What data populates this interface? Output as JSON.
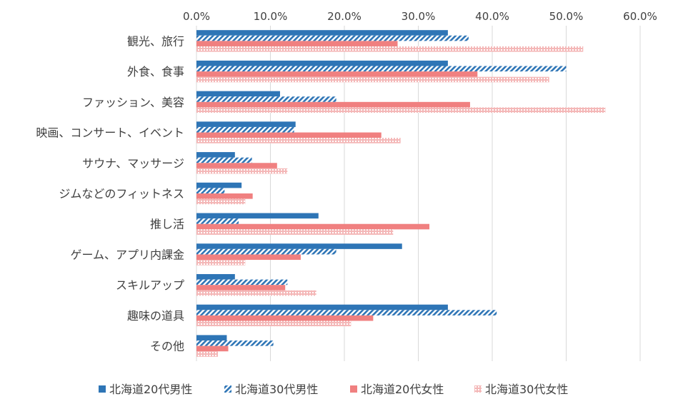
{
  "chart_data": {
    "type": "bar",
    "orientation": "horizontal",
    "categories": [
      "観光、旅行",
      "外食、食事",
      "ファッション、美容",
      "映画、コンサート、イベント",
      "サウナ、マッサージ",
      "ジムなどのフィットネス",
      "推し活",
      "ゲーム、アプリ内課金",
      "スキルアップ",
      "趣味の道具",
      "その他"
    ],
    "series": [
      {
        "name": "北海道20代男性",
        "color": "#2E75B6",
        "pattern": "solid",
        "values": [
          34.0,
          34.0,
          11.3,
          13.4,
          5.2,
          6.1,
          16.5,
          27.8,
          5.2,
          34.0,
          4.1
        ]
      },
      {
        "name": "北海道30代男性",
        "color": "#2E75B6",
        "pattern": "diagonal-stripes",
        "values": [
          36.8,
          50.0,
          18.9,
          13.2,
          7.5,
          3.8,
          5.7,
          18.9,
          12.3,
          40.6,
          10.4
        ]
      },
      {
        "name": "北海道20代女性",
        "color": "#F08080",
        "pattern": "solid",
        "values": [
          27.2,
          38.0,
          37.0,
          25.0,
          10.9,
          7.6,
          31.5,
          14.1,
          12.0,
          23.9,
          4.3
        ]
      },
      {
        "name": "北海道30代女性",
        "color": "#F4B8B8",
        "pattern": "dotted",
        "values": [
          52.3,
          47.7,
          55.3,
          27.6,
          12.3,
          6.6,
          26.6,
          6.6,
          16.2,
          20.9,
          2.9
        ]
      }
    ],
    "xlim": [
      0,
      60
    ],
    "xticks": [
      "0.0%",
      "10.0%",
      "20.0%",
      "30.0%",
      "40.0%",
      "50.0%",
      "60.0%"
    ],
    "xtick_values": [
      0,
      10,
      20,
      30,
      40,
      50,
      60
    ],
    "x_axis_position": "top",
    "grid": true,
    "legend_position": "bottom"
  }
}
